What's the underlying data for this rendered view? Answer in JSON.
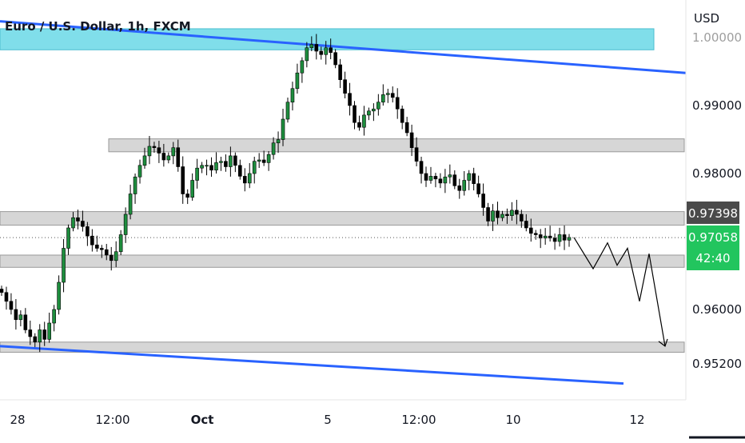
{
  "header": {
    "title": "Euro / U.S. Dollar, 1h, FXCM"
  },
  "colors": {
    "up": "#26a69a",
    "up_body": "#1e8e3e",
    "down": "#000000",
    "zone_top": "#80deea",
    "zone_grey": "#d6d6d6",
    "trend": "#2962ff",
    "current_price_bg": "#22c55e",
    "last_close_bg": "#4a4a4a"
  },
  "chart_data": {
    "type": "candlestick",
    "instrument": "Euro / U.S. Dollar",
    "timeframe": "1h",
    "source": "FXCM",
    "currency_label": "USD",
    "ylim": [
      0.9485,
      1.0045
    ],
    "y_ticks": [
      "1.00000",
      "0.99000",
      "0.98000",
      "0.96000",
      "0.95200"
    ],
    "x_ticks": [
      "28",
      "12:00",
      "Oct",
      "5",
      "12:00",
      "10",
      "12"
    ],
    "price_badges": {
      "last_close": "0.97398",
      "current": "0.97058",
      "countdown": "42:40"
    },
    "zones": [
      {
        "name": "supply",
        "from": 0.9982,
        "to": 1.0013
      },
      {
        "name": "resistance-1",
        "from": 0.9832,
        "to": 0.9851
      },
      {
        "name": "resistance-2",
        "from": 0.9724,
        "to": 0.9744
      },
      {
        "name": "support-1",
        "from": 0.9662,
        "to": 0.968
      },
      {
        "name": "support-2",
        "from": 0.9537,
        "to": 0.9552
      }
    ],
    "trendlines": [
      {
        "name": "upper",
        "from": [
          "28",
          1.0024
        ],
        "to": [
          "12",
          0.9948
        ]
      },
      {
        "name": "lower",
        "from": [
          "28",
          0.9546
        ],
        "to": [
          "12",
          0.9491
        ]
      }
    ],
    "projection": [
      0.9706,
      0.966,
      0.9698,
      0.9665,
      0.969,
      0.9612,
      0.9682,
      0.9546
    ],
    "price_path": [
      0.9625,
      0.9612,
      0.96,
      0.9585,
      0.9592,
      0.957,
      0.956,
      0.9552,
      0.957,
      0.9556,
      0.958,
      0.96,
      0.964,
      0.969,
      0.972,
      0.9735,
      0.973,
      0.9722,
      0.9708,
      0.9695,
      0.969,
      0.9688,
      0.968,
      0.9672,
      0.9685,
      0.971,
      0.974,
      0.977,
      0.9795,
      0.9812,
      0.9826,
      0.984,
      0.9838,
      0.983,
      0.982,
      0.9826,
      0.9838,
      0.981,
      0.977,
      0.9765,
      0.979,
      0.9808,
      0.9812,
      0.9812,
      0.9805,
      0.9816,
      0.9818,
      0.981,
      0.9826,
      0.9812,
      0.9796,
      0.9786,
      0.98,
      0.9818,
      0.982,
      0.9816,
      0.9828,
      0.9845,
      0.985,
      0.988,
      0.9905,
      0.9925,
      0.9948,
      0.9966,
      0.9985,
      0.999,
      0.998,
      0.9975,
      0.9985,
      0.9978,
      0.996,
      0.9938,
      0.9918,
      0.99,
      0.9875,
      0.9868,
      0.9886,
      0.9892,
      0.9895,
      0.9905,
      0.9916,
      0.9918,
      0.9912,
      0.9895,
      0.9875,
      0.986,
      0.9838,
      0.9818,
      0.98,
      0.979,
      0.9796,
      0.9792,
      0.9786,
      0.9795,
      0.9798,
      0.9782,
      0.9775,
      0.979,
      0.98,
      0.9785,
      0.977,
      0.975,
      0.973,
      0.9745,
      0.9735,
      0.974,
      0.9738,
      0.9746,
      0.974,
      0.973,
      0.972,
      0.9712,
      0.971,
      0.9705,
      0.9708,
      0.9705,
      0.97,
      0.971,
      0.9702,
      0.9706
    ]
  }
}
